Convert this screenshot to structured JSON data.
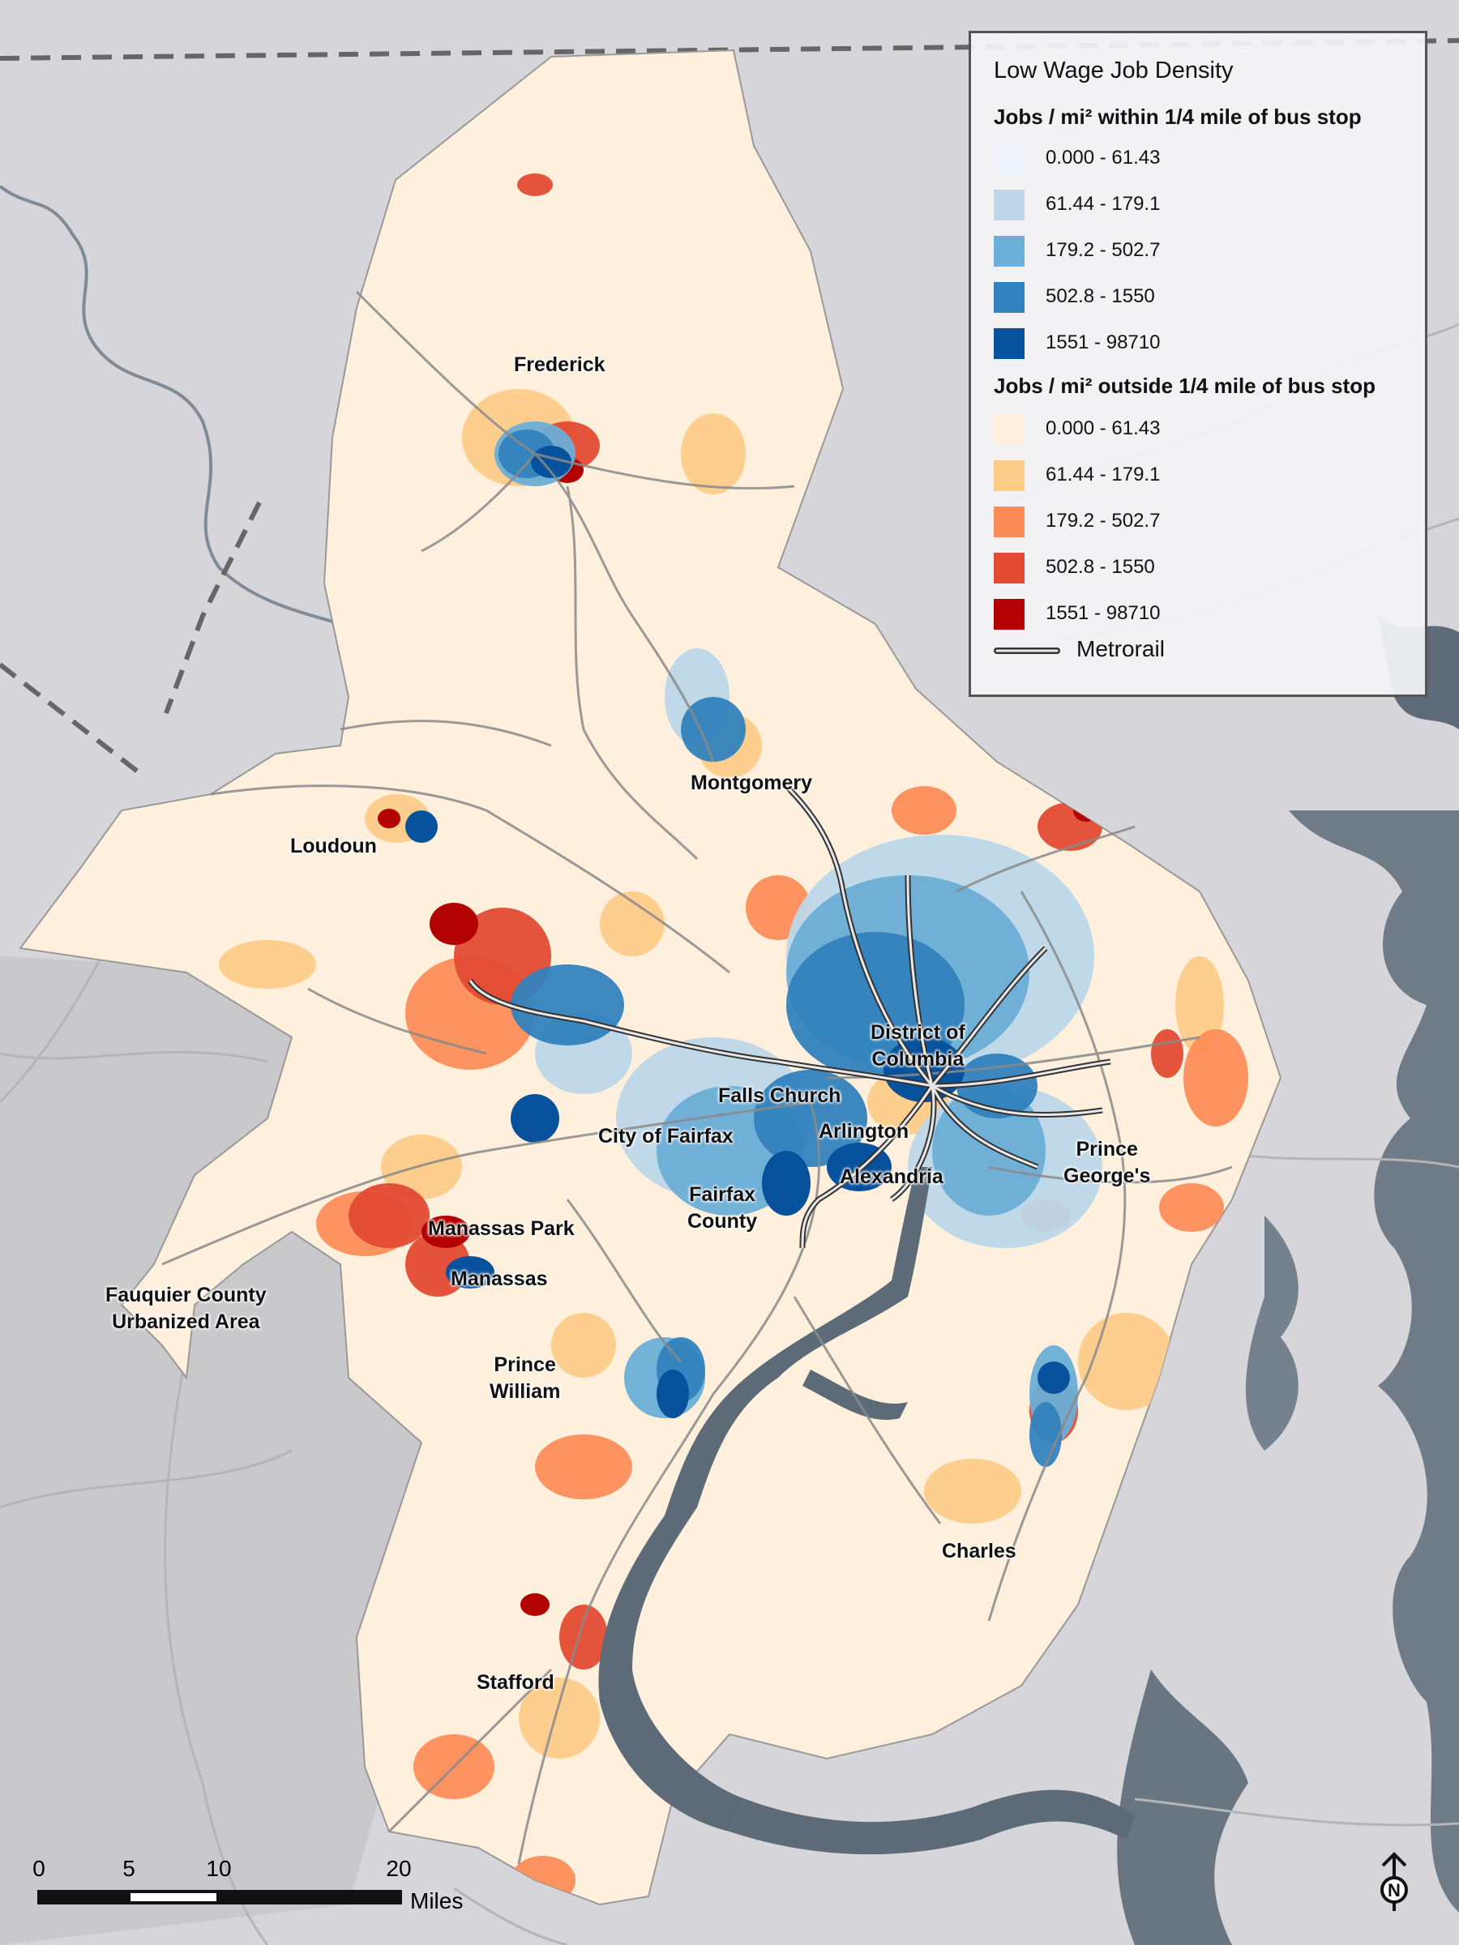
{
  "map": {
    "place_labels": [
      {
        "id": "frederick",
        "text": "Frederick"
      },
      {
        "id": "montgomery",
        "text": "Montgomery"
      },
      {
        "id": "loudoun",
        "text": "Loudoun"
      },
      {
        "id": "dc",
        "text": "District of\nColumbia"
      },
      {
        "id": "falls-church",
        "text": "Falls Church"
      },
      {
        "id": "city-of-fairfax",
        "text": "City of Fairfax"
      },
      {
        "id": "arlington",
        "text": "Arlington"
      },
      {
        "id": "prince-georges",
        "text": "Prince\nGeorge's"
      },
      {
        "id": "alexandria",
        "text": "Alexandria"
      },
      {
        "id": "fairfax-county",
        "text": "Fairfax\nCounty"
      },
      {
        "id": "manassas-park",
        "text": "Manassas Park"
      },
      {
        "id": "manassas",
        "text": "Manassas"
      },
      {
        "id": "fauquier",
        "text": "Fauquier County\nUrbanized Area"
      },
      {
        "id": "prince-william",
        "text": "Prince\nWilliam"
      },
      {
        "id": "charles",
        "text": "Charles"
      },
      {
        "id": "stafford",
        "text": "Stafford"
      }
    ]
  },
  "legend": {
    "title": "Low Wage Job Density",
    "within_heading": "Jobs / mi² within 1/4 mile of bus stop",
    "within_classes": [
      {
        "label": "0.000 - 61.43",
        "color": "#eef3fb"
      },
      {
        "label": "61.44 - 179.1",
        "color": "#bdd7e9"
      },
      {
        "label": "179.2 - 502.7",
        "color": "#6baed6"
      },
      {
        "label": "502.8 - 1550",
        "color": "#3182bd"
      },
      {
        "label": "1551 - 98710",
        "color": "#08519c"
      }
    ],
    "outside_heading": "Jobs / mi² outside 1/4 mile of bus stop",
    "outside_classes": [
      {
        "label": "0.000 - 61.43",
        "color": "#fef0dc"
      },
      {
        "label": "61.44 - 179.1",
        "color": "#fdcb88"
      },
      {
        "label": "179.2 - 502.7",
        "color": "#fc8d59"
      },
      {
        "label": "502.8 - 1550",
        "color": "#e34a33"
      },
      {
        "label": "1551 - 98710",
        "color": "#b30000"
      }
    ],
    "metrorail_label": "Metrorail"
  },
  "scalebar": {
    "ticks": [
      "0",
      "5",
      "10",
      "20"
    ],
    "unit": "Miles"
  },
  "north_arrow": {
    "letter": "N"
  },
  "colors": {
    "background": "#d6d6da",
    "region_fill": "#fef0dc",
    "water": "#5d6b78",
    "roads": "#8a8a8a"
  }
}
